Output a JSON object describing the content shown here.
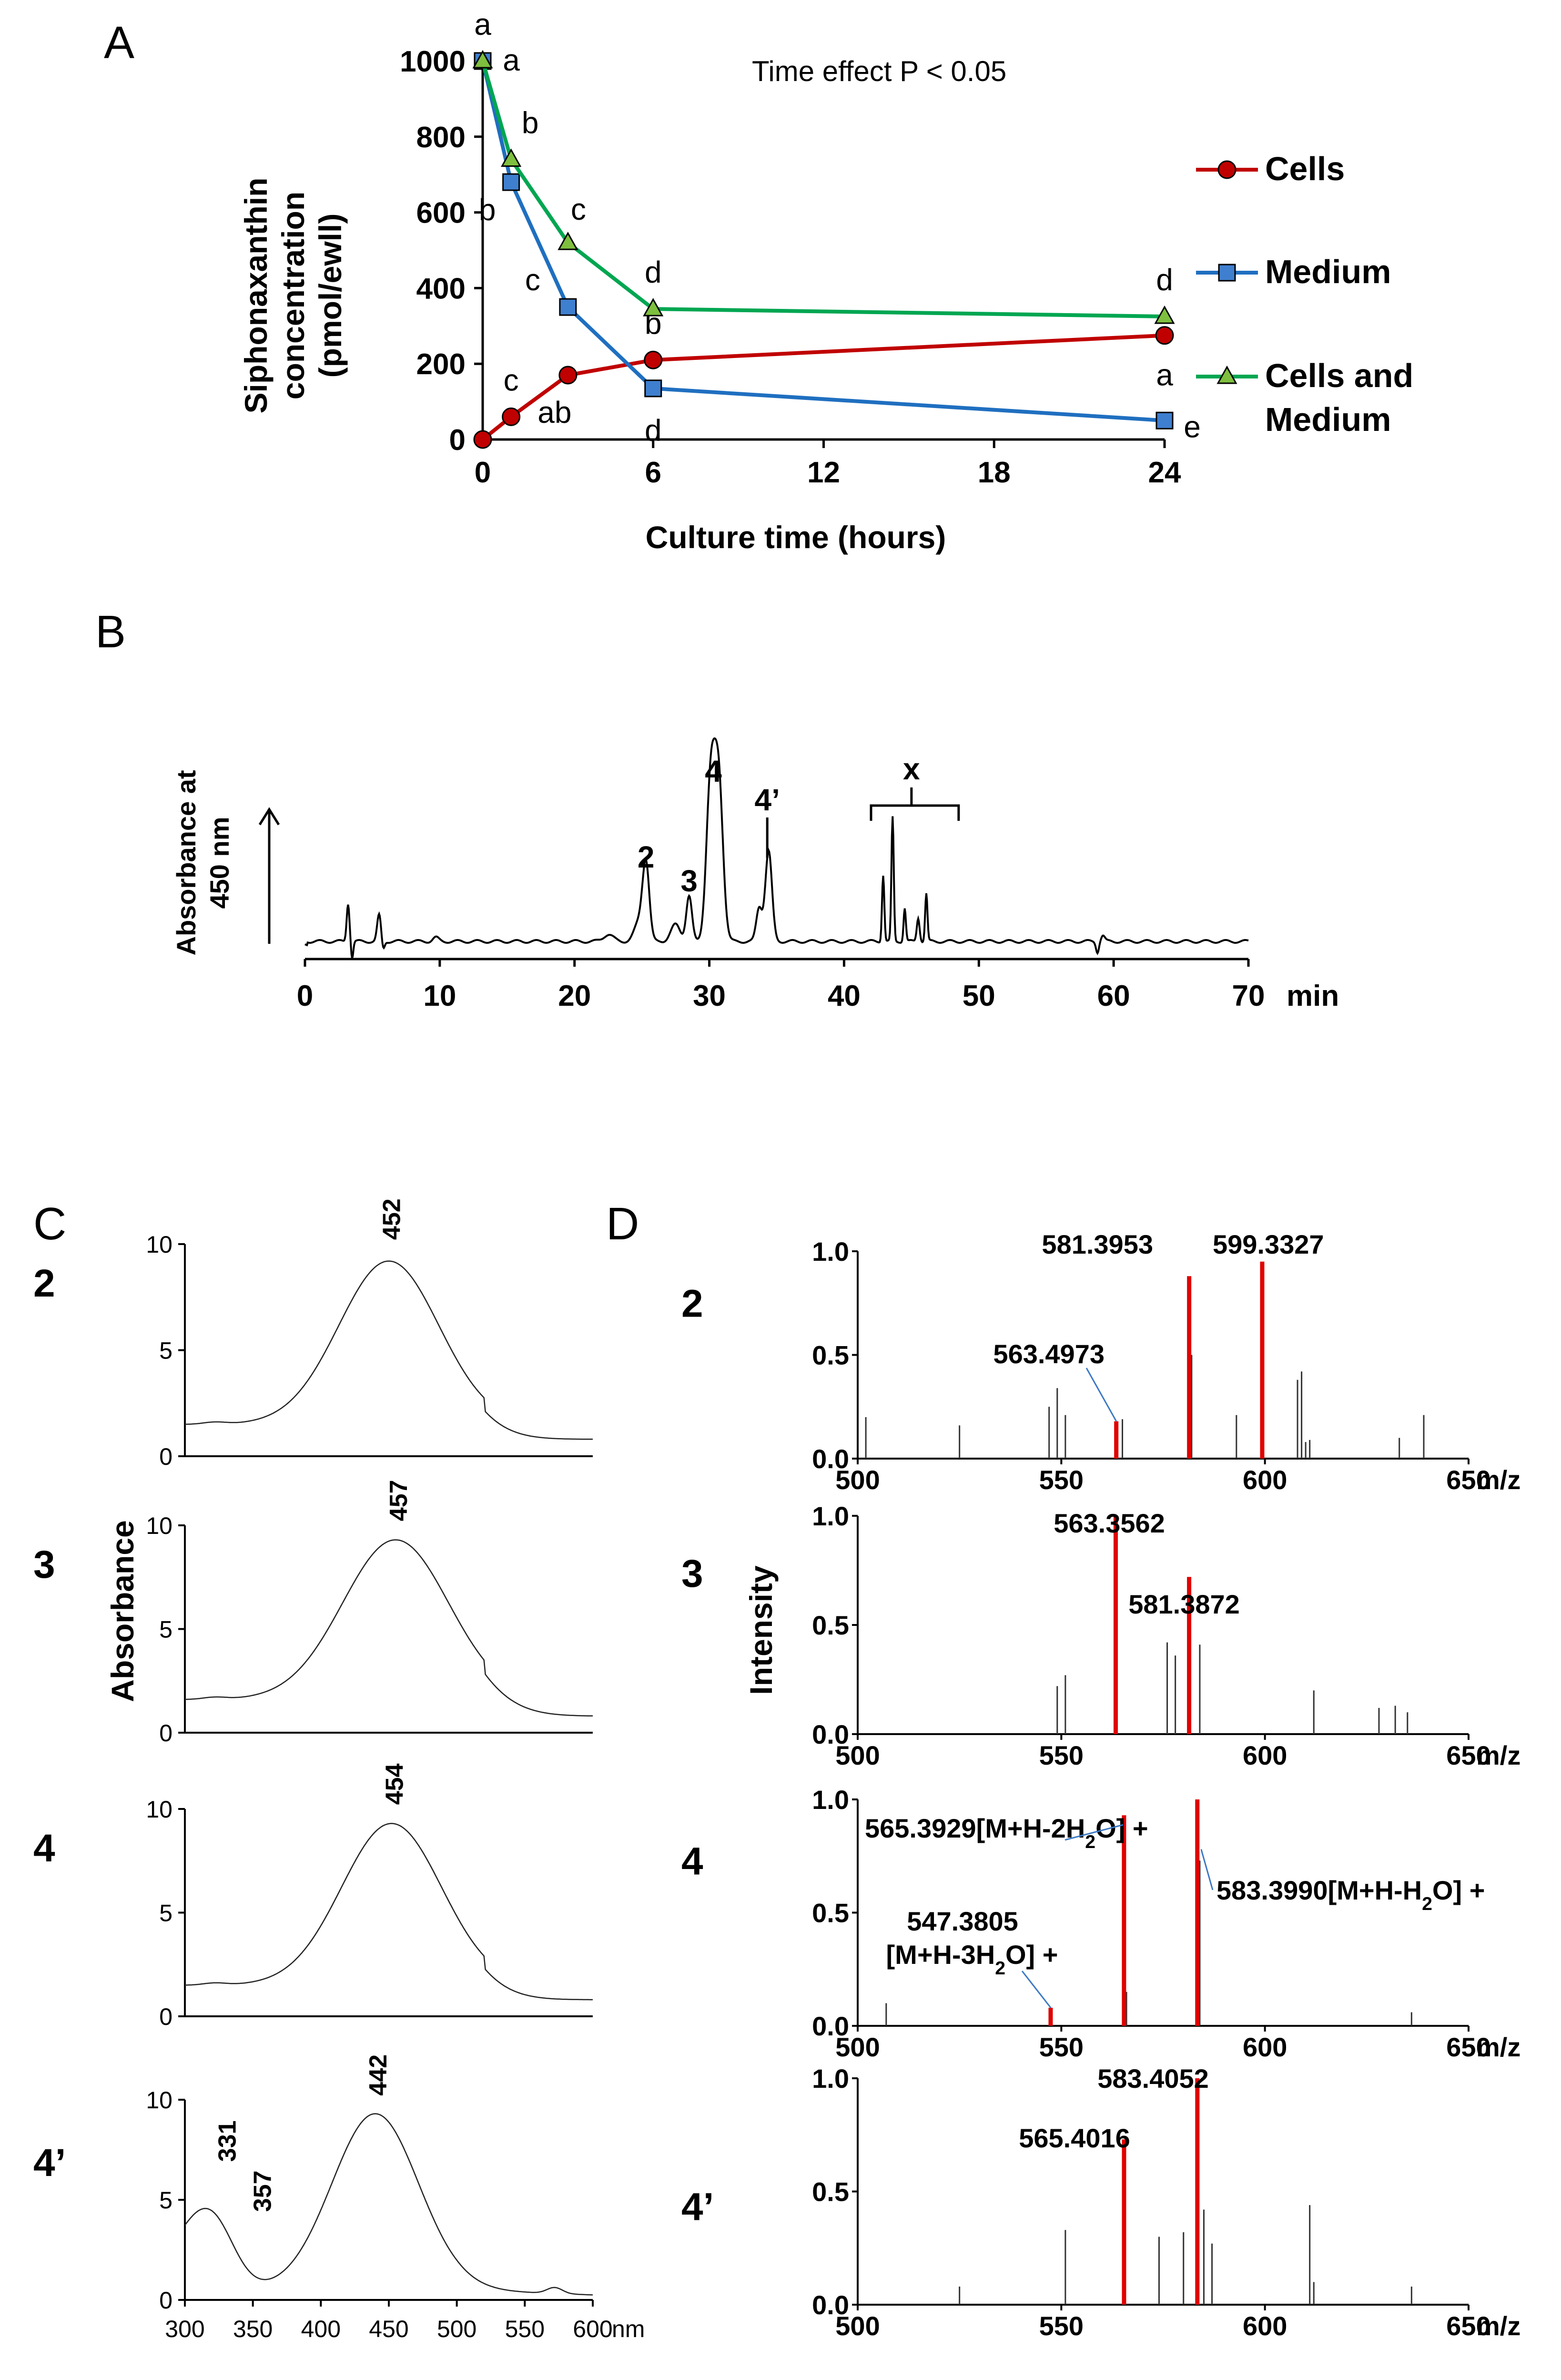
{
  "panels": {
    "a": "A",
    "b": "B",
    "c": "C",
    "d": "D"
  },
  "chart_data": [
    {
      "panel": "A",
      "type": "line",
      "annotation": "Time effect P < 0.05",
      "xlabel": "Culture time (hours)",
      "ylabel": [
        "Siphonaxanthin",
        "concentration",
        "(pmol/ewll)"
      ],
      "xlim": [
        0,
        24
      ],
      "ylim": [
        0,
        1000
      ],
      "xticks": [
        0,
        6,
        12,
        18,
        24
      ],
      "yticks": [
        0,
        200,
        400,
        600,
        800,
        1000
      ],
      "x": [
        0,
        1,
        3,
        6,
        24
      ],
      "series": [
        {
          "name": "Cells",
          "legend": [
            "Cells"
          ],
          "color": "#c00000",
          "marker": "circle",
          "values": [
            0,
            60,
            170,
            210,
            275
          ],
          "letters": [
            "",
            "c",
            "ab",
            "b",
            "a"
          ]
        },
        {
          "name": "Medium",
          "legend": [
            "Medium"
          ],
          "color": "#1f6fc0",
          "marker": "square",
          "values": [
            1000,
            680,
            350,
            135,
            50
          ],
          "letters": [
            "a",
            "b",
            "c",
            "d",
            "e"
          ]
        },
        {
          "name": "Cells and Medium",
          "legend": [
            "Cells and",
            "Medium"
          ],
          "color": "#00a651",
          "marker": "triangle",
          "values": [
            1000,
            740,
            520,
            345,
            325
          ],
          "letters": [
            "a",
            "b",
            "c",
            "d",
            "d"
          ]
        }
      ],
      "letter_colors": {
        "cells": "#e02020",
        "medium": "#3b78c4",
        "cells_medium": "#5aaa3c"
      }
    },
    {
      "panel": "B",
      "type": "line",
      "ylabel": [
        "Absorbance at",
        "450 nm"
      ],
      "xlabel": "min",
      "xlim": [
        0,
        70
      ],
      "xticks": [
        0,
        10,
        20,
        30,
        40,
        50,
        60,
        70
      ],
      "peaks": [
        {
          "label": "2",
          "x": 25.3
        },
        {
          "label": "3",
          "x": 28.5
        },
        {
          "label": "4",
          "x": 30.3
        },
        {
          "label": "4’",
          "x": 34.3
        },
        {
          "label": "x",
          "x": 45.0
        }
      ]
    },
    {
      "panel": "C",
      "type": "line",
      "ylabel": "Absorbance",
      "xlabel": "nm",
      "xlim": [
        300,
        600
      ],
      "xticks": [
        300,
        350,
        400,
        450,
        500,
        550,
        600
      ],
      "ylim": [
        0,
        10
      ],
      "yticks": [
        0,
        5,
        10
      ],
      "spectra": [
        {
          "label": "2",
          "maxima": [
            452
          ],
          "baseline": 1.5,
          "peak": 9.2,
          "center": 450,
          "width": 52
        },
        {
          "label": "3",
          "maxima": [
            457
          ],
          "baseline": 1.6,
          "peak": 9.3,
          "center": 455,
          "width": 55
        },
        {
          "label": "4",
          "maxima": [
            454
          ],
          "baseline": 1.5,
          "peak": 9.3,
          "center": 452,
          "width": 52
        },
        {
          "label": "4’",
          "maxima": [
            331,
            357,
            442
          ],
          "baseline": 0.5,
          "peak": 9.3,
          "center": 440,
          "width": 45
        }
      ]
    },
    {
      "panel": "D",
      "type": "bar",
      "ylabel": "Intensity",
      "xlabel": "m/z",
      "xlim": [
        500,
        650
      ],
      "xticks": [
        500,
        550,
        600,
        650
      ],
      "ylim": [
        0,
        1.0
      ],
      "yticks": [
        "0.0",
        "0.5",
        "1.0"
      ],
      "spectra": [
        {
          "label": "2",
          "highlight": [
            {
              "mz": 599.3327,
              "i": 0.95,
              "label": "599.3327"
            },
            {
              "mz": 581.3953,
              "i": 0.88,
              "label": "581.3953"
            },
            {
              "mz": 563.4973,
              "i": 0.18,
              "label": "563.4973"
            }
          ],
          "minor": [
            [
              502,
              0.2
            ],
            [
              525,
              0.16
            ],
            [
              547,
              0.25
            ],
            [
              549,
              0.34
            ],
            [
              551,
              0.21
            ],
            [
              565,
              0.19
            ],
            [
              582,
              0.5
            ],
            [
              593,
              0.21
            ],
            [
              608,
              0.38
            ],
            [
              609,
              0.42
            ],
            [
              610,
              0.08
            ],
            [
              611,
              0.09
            ],
            [
              633,
              0.1
            ],
            [
              639,
              0.21
            ]
          ]
        },
        {
          "label": "3",
          "highlight": [
            {
              "mz": 563.3562,
              "i": 1.0,
              "label": "563.3562"
            },
            {
              "mz": 581.3872,
              "i": 0.72,
              "label": "581.3872"
            }
          ],
          "minor": [
            [
              549,
              0.22
            ],
            [
              551,
              0.27
            ],
            [
              576,
              0.42
            ],
            [
              578,
              0.36
            ],
            [
              584,
              0.41
            ],
            [
              612,
              0.2
            ],
            [
              628,
              0.12
            ],
            [
              632,
              0.13
            ],
            [
              635,
              0.1
            ]
          ]
        },
        {
          "label": "4",
          "highlight": [
            {
              "mz": 583.399,
              "i": 1.0,
              "label": "583.3990[M+H-H2O] +"
            },
            {
              "mz": 565.3929,
              "i": 0.93,
              "label": "565.3929[M+H-2H2O] +"
            },
            {
              "mz": 547.3805,
              "i": 0.08,
              "label": "547.3805",
              "label2": "[M+H-3H2O] +"
            }
          ],
          "minor": [
            [
              507,
              0.1
            ],
            [
              566,
              0.15
            ],
            [
              584,
              0.73
            ],
            [
              636,
              0.06
            ]
          ]
        },
        {
          "label": "4’",
          "highlight": [
            {
              "mz": 583.4052,
              "i": 1.0,
              "label": "583.4052"
            },
            {
              "mz": 565.4016,
              "i": 0.73,
              "label": "565.4016"
            }
          ],
          "minor": [
            [
              525,
              0.08
            ],
            [
              551,
              0.33
            ],
            [
              574,
              0.3
            ],
            [
              580,
              0.32
            ],
            [
              585,
              0.42
            ],
            [
              587,
              0.27
            ],
            [
              611,
              0.44
            ],
            [
              612,
              0.1
            ],
            [
              636,
              0.08
            ]
          ]
        }
      ]
    }
  ]
}
